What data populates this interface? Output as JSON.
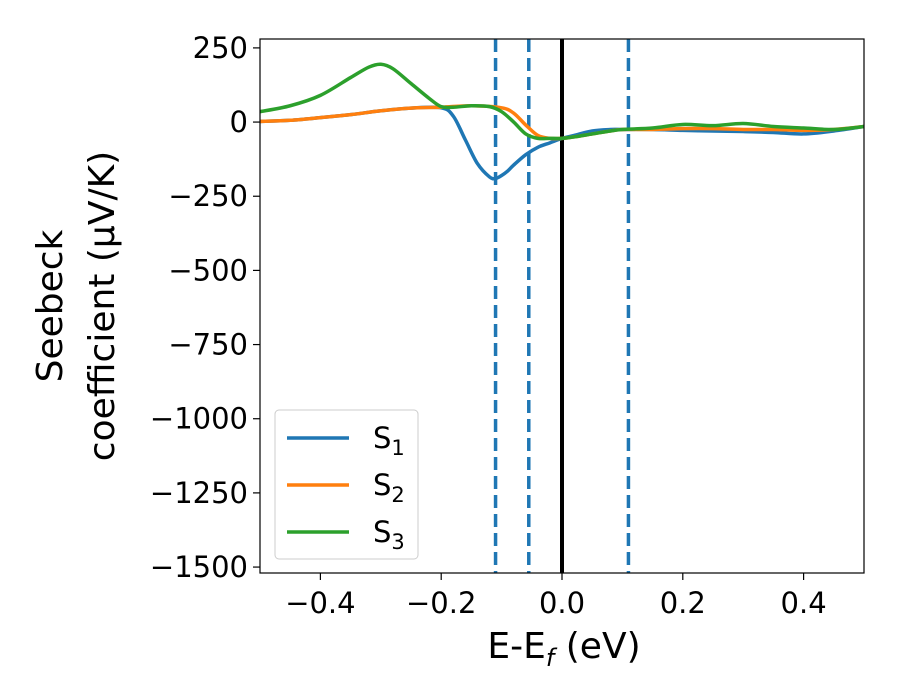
{
  "chart_data": {
    "type": "line",
    "title": "",
    "xlabel": "E-E_f (eV)",
    "ylabel_line1": "Seebeck",
    "ylabel_line2": "coefficient  (μV/K)",
    "xlim": [
      -0.5,
      0.5
    ],
    "ylim": [
      -1520,
      280
    ],
    "xticks": [
      -0.4,
      -0.2,
      0.0,
      0.2,
      0.4
    ],
    "xtick_labels": [
      "−0.4",
      "−0.2",
      "0.0",
      "0.2",
      "0.4"
    ],
    "yticks": [
      250,
      0,
      -250,
      -500,
      -750,
      -1000,
      -1250,
      -1500
    ],
    "ytick_labels": [
      "250",
      "0",
      "−250",
      "−500",
      "−750",
      "−1000",
      "−1250",
      "−1500"
    ],
    "grid": false,
    "legend_position": "lower-left",
    "vertical_lines": [
      {
        "x": 0.0,
        "style": "solid",
        "color": "#000000"
      },
      {
        "x": -0.11,
        "style": "dashed",
        "color": "#1f77b4"
      },
      {
        "x": -0.055,
        "style": "dashed",
        "color": "#1f77b4"
      },
      {
        "x": 0.11,
        "style": "dashed",
        "color": "#1f77b4"
      }
    ],
    "series": [
      {
        "name": "S",
        "subscript": "1",
        "color": "#1f77b4",
        "x": [
          -0.5,
          -0.45,
          -0.4,
          -0.35,
          -0.3,
          -0.25,
          -0.2,
          -0.18,
          -0.16,
          -0.14,
          -0.12,
          -0.11,
          -0.1,
          -0.09,
          -0.08,
          -0.06,
          -0.04,
          -0.02,
          0.0,
          0.02,
          0.05,
          0.08,
          0.1,
          0.15,
          0.2,
          0.25,
          0.3,
          0.35,
          0.4,
          0.45,
          0.5
        ],
        "y": [
          2,
          6,
          15,
          25,
          38,
          47,
          48,
          20,
          -60,
          -140,
          -185,
          -190,
          -180,
          -165,
          -145,
          -110,
          -85,
          -70,
          -55,
          -45,
          -30,
          -25,
          -25,
          -25,
          -28,
          -30,
          -32,
          -35,
          -40,
          -30,
          -15
        ]
      },
      {
        "name": "S",
        "subscript": "2",
        "color": "#ff7f0e",
        "x": [
          -0.5,
          -0.45,
          -0.4,
          -0.35,
          -0.3,
          -0.25,
          -0.2,
          -0.15,
          -0.1,
          -0.08,
          -0.06,
          -0.04,
          -0.02,
          0.0,
          0.02,
          0.05,
          0.08,
          0.1,
          0.15,
          0.2,
          0.25,
          0.3,
          0.35,
          0.4,
          0.45,
          0.5
        ],
        "y": [
          2,
          6,
          15,
          25,
          38,
          47,
          50,
          55,
          48,
          30,
          -10,
          -45,
          -55,
          -55,
          -50,
          -40,
          -30,
          -25,
          -25,
          -22,
          -22,
          -25,
          -25,
          -28,
          -25,
          -15
        ]
      },
      {
        "name": "S",
        "subscript": "3",
        "color": "#2ca02c",
        "x": [
          -0.5,
          -0.45,
          -0.4,
          -0.35,
          -0.32,
          -0.3,
          -0.28,
          -0.25,
          -0.22,
          -0.2,
          -0.18,
          -0.15,
          -0.12,
          -0.1,
          -0.08,
          -0.06,
          -0.04,
          -0.02,
          0.0,
          0.02,
          0.05,
          0.08,
          0.1,
          0.15,
          0.2,
          0.25,
          0.3,
          0.35,
          0.4,
          0.45,
          0.5
        ],
        "y": [
          35,
          55,
          90,
          150,
          185,
          195,
          180,
          130,
          80,
          52,
          50,
          55,
          52,
          35,
          0,
          -40,
          -55,
          -55,
          -55,
          -50,
          -40,
          -30,
          -25,
          -20,
          -8,
          -12,
          -5,
          -15,
          -20,
          -25,
          -15
        ]
      }
    ]
  }
}
